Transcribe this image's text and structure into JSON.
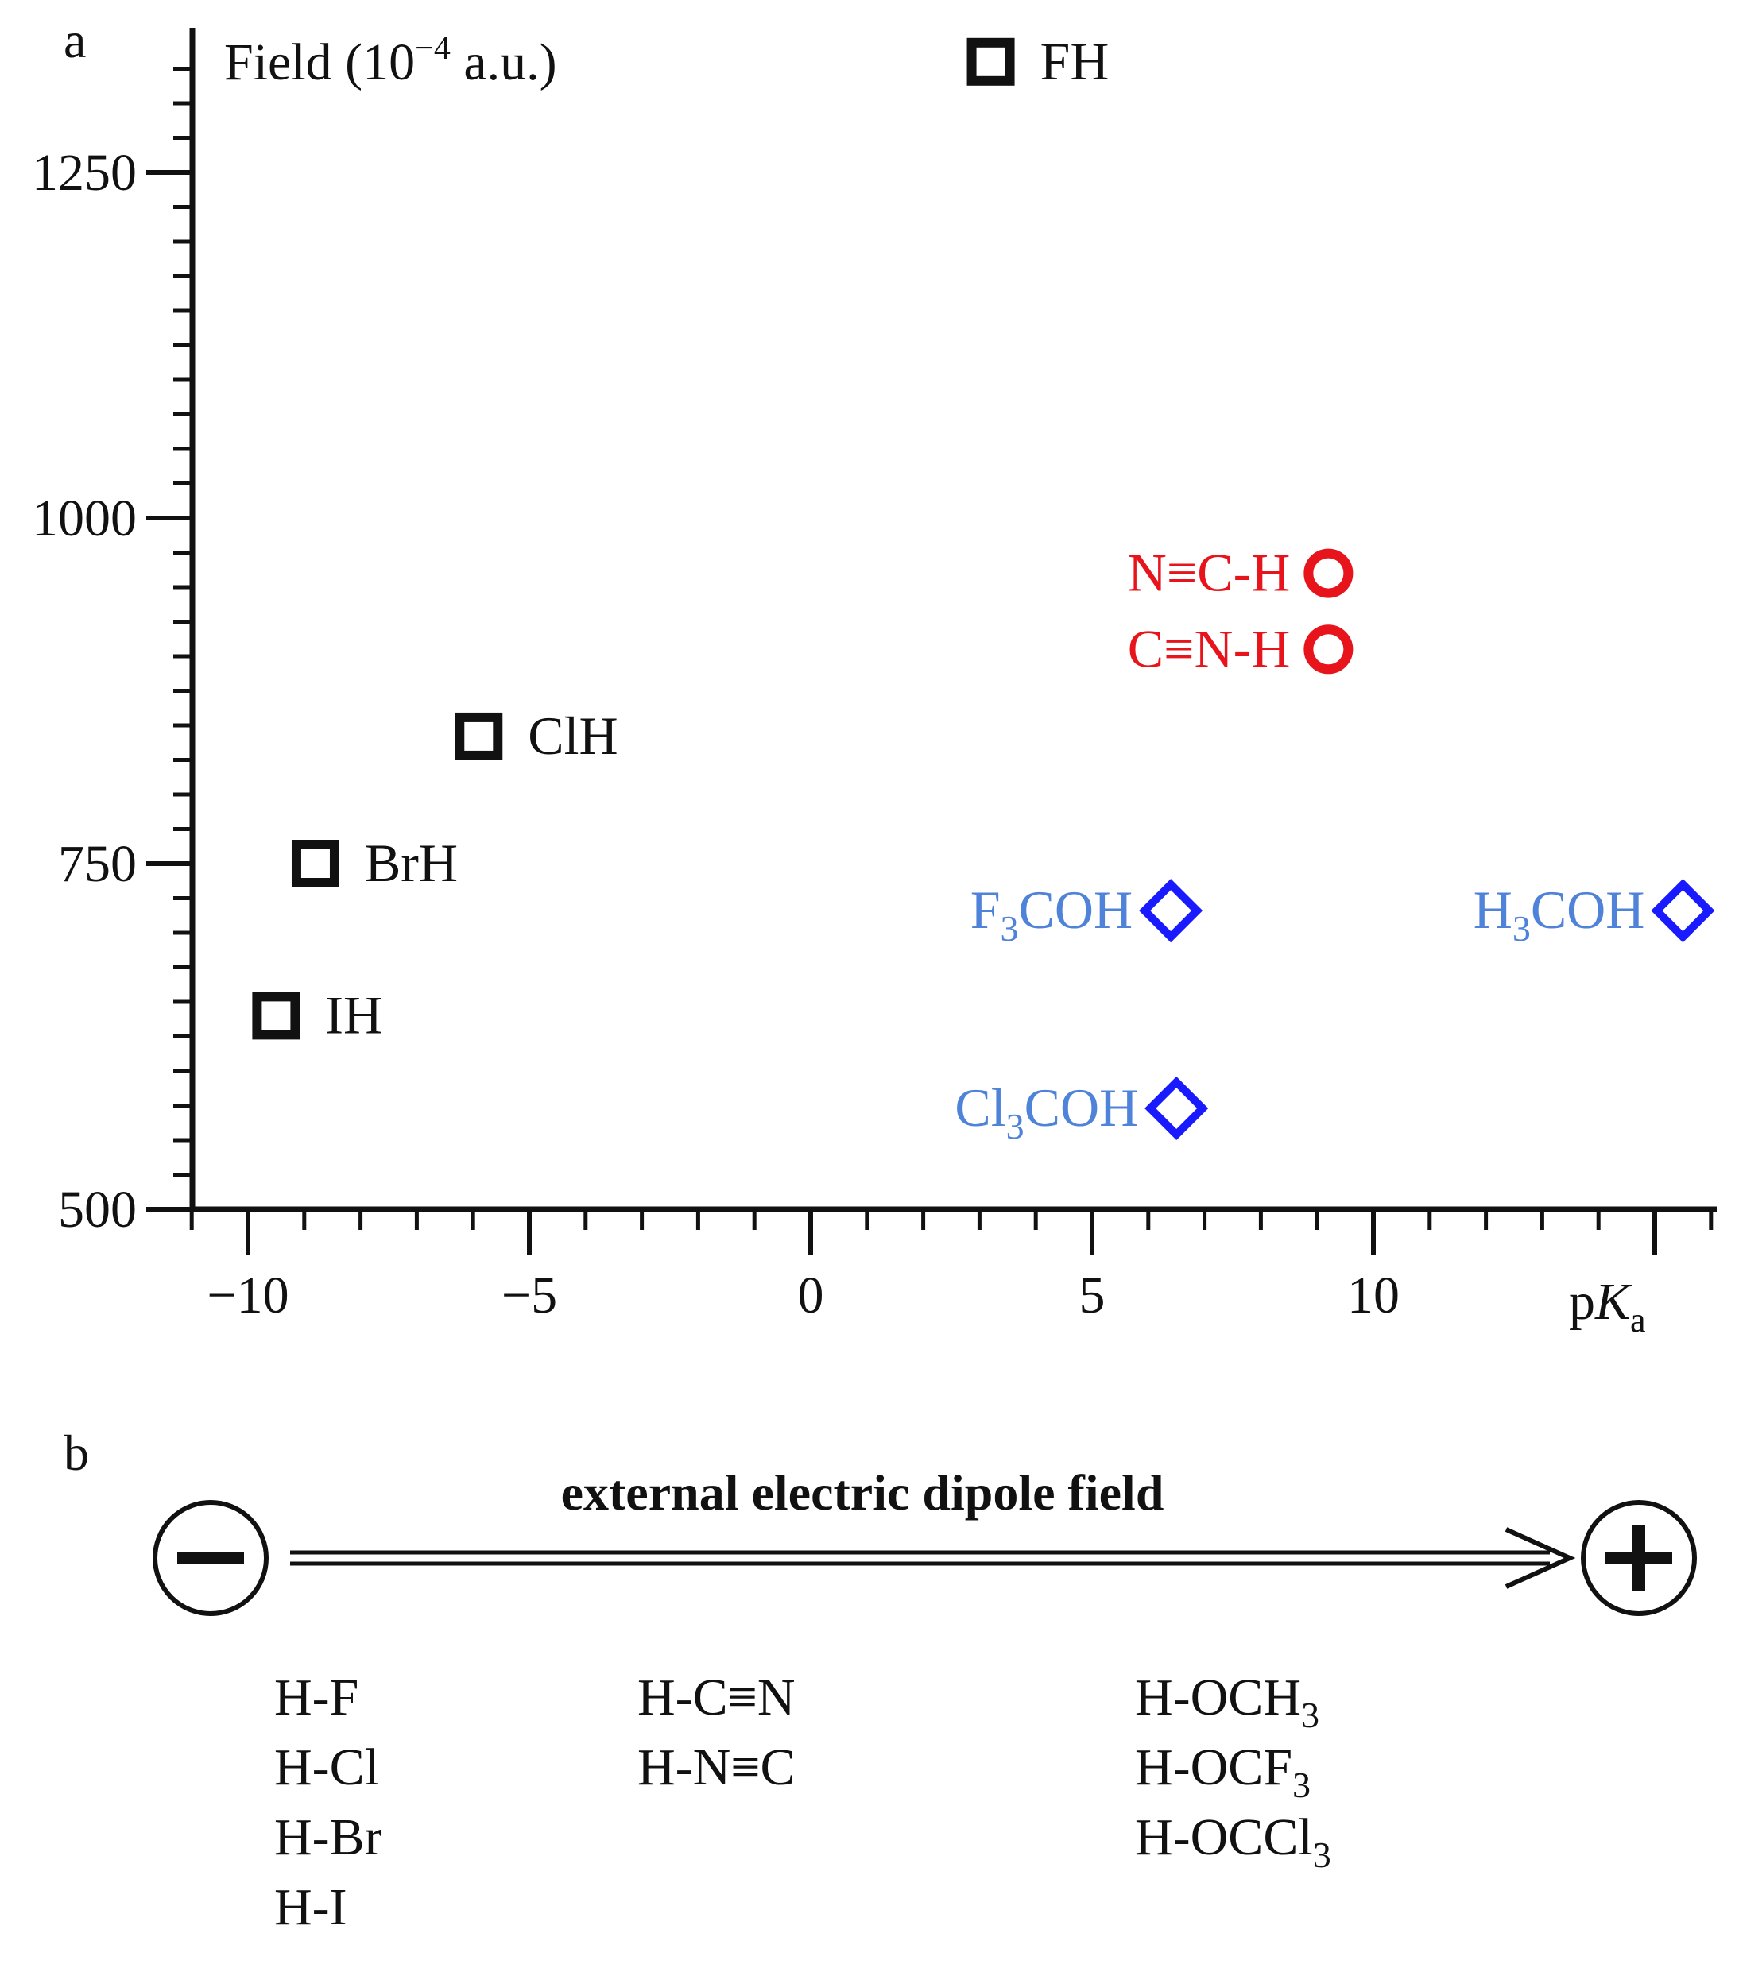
{
  "panel_a": {
    "letter": "a"
  },
  "panel_b": {
    "letter": "b",
    "title": "external electric dipole field",
    "negative_symbol": "minus-circle-icon",
    "positive_symbol": "plus-circle-icon",
    "columns": [
      [
        "H-F",
        "H-Cl",
        "H-Br",
        "H-I"
      ],
      [
        "H-C≡N",
        "H-N≡C"
      ],
      [
        {
          "base": "H-OCH",
          "sub": "3"
        },
        {
          "base": "H-OCF",
          "sub": "3"
        },
        {
          "base": "H-OCCl",
          "sub": "3"
        }
      ]
    ]
  },
  "colors": {
    "halides": "#111111",
    "cyanides": "#e8141c",
    "alcohols": "#1a1aff",
    "alcohol_labels": "#4f82d9"
  },
  "chart_data": {
    "type": "scatter",
    "title": "",
    "xlabel": {
      "base": "p",
      "italic": "K",
      "sub": "a"
    },
    "ylabel": {
      "prefix": "Field (10",
      "sup": "−4",
      "suffix": " a.u.)"
    },
    "xlim": [
      -11,
      16
    ],
    "ylim": [
      500,
      1340
    ],
    "x_ticks": [
      -10,
      -5,
      0,
      5,
      10
    ],
    "x_tick_labels": [
      "−10",
      "−5",
      "0",
      "5",
      "10"
    ],
    "y_ticks": [
      500,
      750,
      1000,
      1250
    ],
    "y_tick_labels": [
      "500",
      "750",
      "1000",
      "1250"
    ],
    "grid": false,
    "series": [
      {
        "marker": "square",
        "color": "#111111",
        "label_color": "#111111",
        "points": [
          {
            "x": 3.2,
            "y": 1330,
            "label": {
              "base": "FH"
            },
            "label_side": "right"
          },
          {
            "x": -5.9,
            "y": 842,
            "label": {
              "base": "ClH"
            },
            "label_side": "right"
          },
          {
            "x": -8.8,
            "y": 750,
            "label": {
              "base": "BrH"
            },
            "label_side": "right"
          },
          {
            "x": -9.5,
            "y": 640,
            "label": {
              "base": "IH"
            },
            "label_side": "right"
          }
        ]
      },
      {
        "marker": "circle",
        "color": "#e8141c",
        "label_color": "#e8141c",
        "points": [
          {
            "x": 9.2,
            "y": 960,
            "label": {
              "base": "N≡C-H"
            },
            "label_side": "left"
          },
          {
            "x": 9.2,
            "y": 905,
            "label": {
              "base": "C≡N-H"
            },
            "label_side": "left"
          }
        ]
      },
      {
        "marker": "diamond",
        "color": "#1a1aff",
        "label_color": "#4f82d9",
        "points": [
          {
            "x": 6.4,
            "y": 716,
            "label": {
              "base": "F",
              "sub": "3",
              "rest": "COH"
            },
            "label_side": "left"
          },
          {
            "x": 15.5,
            "y": 716,
            "label": {
              "base": "H",
              "sub": "3",
              "rest": "COH"
            },
            "label_side": "left"
          },
          {
            "x": 6.5,
            "y": 573,
            "label": {
              "base": "Cl",
              "sub": "3",
              "rest": "COH"
            },
            "label_side": "left"
          }
        ]
      }
    ]
  }
}
